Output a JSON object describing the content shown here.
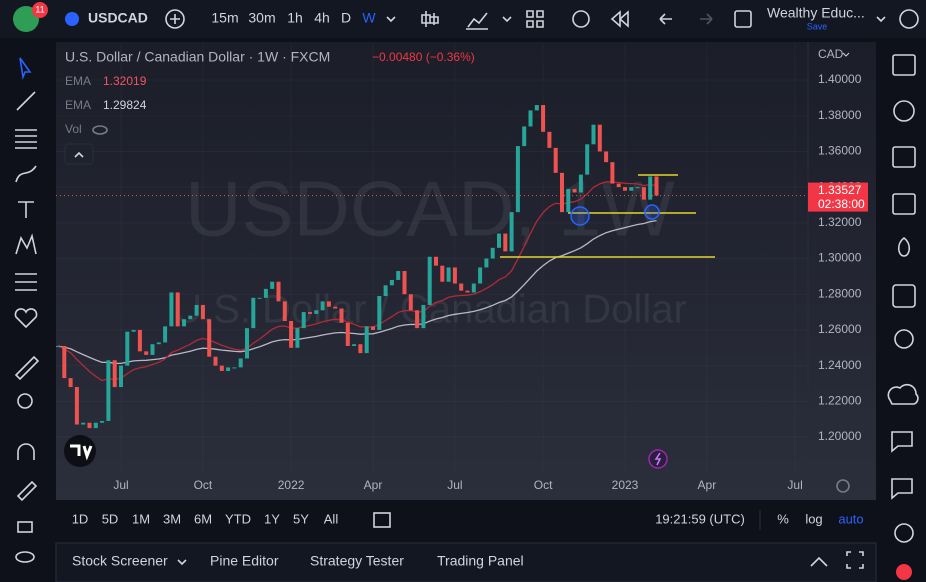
{
  "top_bar": {
    "badge": "11",
    "symbol": "USDCAD",
    "intervals": [
      "15m",
      "30m",
      "1h",
      "4h",
      "D",
      "W"
    ],
    "layout_name": "Wealthy Educ...",
    "save": "Save"
  },
  "legend": {
    "title": "U.S. Dollar / Canadian Dollar · 1W · FXCM",
    "change": "−0.00480 (−0.36%)",
    "indicators": [
      {
        "name": "EMA",
        "value": 1.32019
      },
      {
        "name": "EMA",
        "value": 1.29824
      }
    ],
    "volume": "Vol"
  },
  "chart_data": {
    "type": "candlestick",
    "currency": "CAD",
    "watermark": "USDCAD, 1W",
    "watermark_subtitle": "U.S. Dollar / Canadian Dollar",
    "up_color": "#26a69a",
    "down_color": "#ef5350",
    "ylim": [
      1.1804,
      1.4202
    ],
    "yticks": [
      {
        "value": 1.2,
        "label": "1.20000"
      },
      {
        "value": 1.22,
        "label": "1.22000"
      },
      {
        "value": 1.24,
        "label": "1.24000"
      },
      {
        "value": 1.26,
        "label": "1.26000"
      },
      {
        "value": 1.28,
        "label": "1.28000"
      },
      {
        "value": 1.3,
        "label": "1.30000"
      },
      {
        "value": 1.32,
        "label": "1.32000"
      },
      {
        "value": 1.34,
        "label": "1.34000"
      },
      {
        "value": 1.36,
        "label": "1.36000"
      },
      {
        "value": 1.38,
        "label": "1.38000"
      },
      {
        "value": 1.4,
        "label": "1.40000"
      }
    ],
    "categories": [
      null,
      null,
      null,
      null,
      null,
      null,
      null,
      null,
      null,
      null,
      "Jul",
      null,
      null,
      null,
      null,
      null,
      null,
      null,
      null,
      null,
      null,
      null,
      null,
      "Oct",
      null,
      null,
      null,
      null,
      null,
      null,
      null,
      null,
      null,
      null,
      null,
      null,
      null,
      "2022",
      null,
      null,
      null,
      null,
      null,
      null,
      null,
      null,
      null,
      null,
      null,
      null,
      "Apr",
      null,
      null,
      null,
      null,
      null,
      null,
      null,
      null,
      null,
      null,
      null,
      null,
      "Jul",
      null,
      null,
      null,
      null,
      null,
      null,
      null,
      null,
      null,
      null,
      null,
      null,
      null,
      "Oct",
      null,
      null,
      null,
      null,
      null,
      null,
      null,
      null,
      null,
      null,
      null,
      null,
      "2023",
      null,
      null,
      null,
      null,
      null,
      null,
      null,
      null,
      null,
      null,
      null,
      null,
      "Apr",
      null,
      null,
      null,
      null,
      null,
      null,
      null,
      null,
      null,
      null,
      null,
      null,
      null,
      "Jul"
    ],
    "values": [
      1.251,
      1.233,
      1.228,
      1.207,
      1.208,
      1.205,
      1.208,
      1.209,
      1.243,
      1.228,
      1.24,
      1.259,
      1.26,
      1.248,
      1.246,
      1.252,
      1.253,
      1.262,
      1.281,
      1.262,
      1.266,
      1.268,
      1.274,
      1.266,
      1.245,
      1.24,
      1.237,
      1.239,
      1.239,
      1.244,
      1.261,
      1.278,
      1.278,
      1.283,
      1.287,
      1.276,
      1.265,
      1.25,
      1.261,
      1.27,
      1.269,
      1.271,
      1.276,
      1.273,
      1.272,
      1.264,
      1.251,
      1.252,
      1.247,
      1.262,
      1.26,
      1.279,
      1.285,
      1.288,
      1.293,
      1.28,
      1.271,
      1.261,
      1.274,
      1.301,
      1.296,
      1.287,
      1.295,
      1.286,
      1.282,
      1.281,
      1.286,
      1.295,
      1.3,
      1.306,
      1.314,
      1.304,
      1.326,
      1.363,
      1.374,
      1.383,
      1.386,
      1.371,
      1.362,
      1.348,
      1.326,
      1.339,
      1.337,
      1.347,
      1.364,
      1.375,
      1.36,
      1.354,
      1.342,
      1.34,
      1.338,
      1.34,
      1.34,
      1.333,
      1.346,
      1.33527,
      null,
      null,
      null,
      null,
      null,
      null,
      null,
      null,
      null,
      null,
      null,
      null,
      null,
      null,
      null,
      null,
      null,
      null,
      null,
      null,
      null,
      null
    ],
    "last_price": 1.33527,
    "countdown": "02:38:00"
  },
  "bottom_toolbar": {
    "ranges": [
      "1D",
      "5D",
      "1M",
      "3M",
      "6M",
      "YTD",
      "1Y",
      "5Y",
      "All"
    ],
    "clock": "19:21:59 (UTC)",
    "scale_options": [
      "%",
      "log",
      "auto"
    ]
  },
  "bottom_panel": {
    "tabs": [
      "Stock Screener",
      "Pine Editor",
      "Strategy Tester",
      "Trading Panel"
    ]
  }
}
